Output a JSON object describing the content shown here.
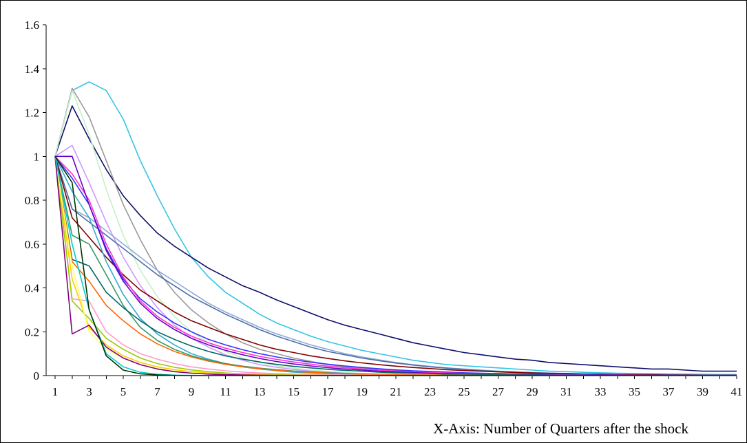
{
  "chart_data": {
    "type": "line",
    "title": "",
    "xlabel": "X-Axis: Number of Quarters after the shock",
    "ylabel": "",
    "xlim": [
      1,
      41
    ],
    "ylim": [
      0,
      1.6
    ],
    "x_tick_labels": [
      "1",
      "3",
      "5",
      "7",
      "9",
      "11",
      "13",
      "15",
      "17",
      "19",
      "21",
      "23",
      "25",
      "27",
      "29",
      "31",
      "33",
      "35",
      "37",
      "39",
      "41"
    ],
    "y_tick_labels": [
      "0",
      "0.2",
      "0.4",
      "0.6",
      "0.8",
      "1",
      "1.2",
      "1.4",
      "1.6"
    ],
    "y_tick_values": [
      0,
      0.2,
      0.4,
      0.6,
      0.8,
      1.0,
      1.2,
      1.4,
      1.6
    ],
    "grid": false,
    "legend": "none",
    "series": [
      {
        "color": "#33c4e6",
        "values": [
          1.0,
          1.3,
          1.34,
          1.3,
          1.17,
          0.98,
          0.82,
          0.67,
          0.54,
          0.45,
          0.38,
          0.33,
          0.28,
          0.24,
          0.21,
          0.18,
          0.155,
          0.135,
          0.115,
          0.1,
          0.085,
          0.07,
          0.06,
          0.05,
          0.045,
          0.04,
          0.035,
          0.03,
          0.025,
          0.02,
          0.018,
          0.015,
          0.013,
          0.011,
          0.01,
          0.009,
          0.008,
          0.007,
          0.006,
          0.005,
          0.005
        ]
      },
      {
        "color": "#0d0d6b",
        "values": [
          1.0,
          1.23,
          1.08,
          0.94,
          0.82,
          0.73,
          0.65,
          0.59,
          0.54,
          0.49,
          0.45,
          0.41,
          0.38,
          0.345,
          0.315,
          0.285,
          0.255,
          0.23,
          0.21,
          0.19,
          0.17,
          0.15,
          0.135,
          0.12,
          0.105,
          0.095,
          0.085,
          0.075,
          0.07,
          0.06,
          0.055,
          0.05,
          0.045,
          0.04,
          0.035,
          0.03,
          0.03,
          0.025,
          0.02,
          0.02,
          0.02
        ]
      },
      {
        "color": "#999999",
        "values": [
          1.0,
          1.31,
          1.18,
          0.98,
          0.78,
          0.62,
          0.48,
          0.38,
          0.3,
          0.24,
          0.19,
          0.15,
          0.12,
          0.1,
          0.08,
          0.065,
          0.05,
          0.04,
          0.035,
          0.03,
          0.025,
          0.02,
          0.018,
          0.015,
          0.012,
          0.01,
          0.01,
          0.008,
          0.007,
          0.006,
          0.005,
          0.005,
          0.004,
          0.004,
          0.003,
          0.003,
          0.003,
          0.002,
          0.002,
          0.002,
          0.002
        ]
      },
      {
        "color": "#c4f0c4",
        "values": [
          1.0,
          1.3,
          1.1,
          0.85,
          0.64,
          0.48,
          0.36,
          0.27,
          0.2,
          0.15,
          0.11,
          0.08,
          0.06,
          0.045,
          0.034,
          0.025,
          0.019,
          0.014,
          0.01,
          0.008,
          0.006,
          0.004,
          0.003,
          0.003,
          0.002,
          0.002,
          0.001,
          0.001,
          0.001,
          0.001,
          0.001,
          0.001,
          0,
          0,
          0,
          0,
          0,
          0,
          0,
          0,
          0
        ]
      },
      {
        "color": "#cc99ff",
        "values": [
          1.0,
          1.05,
          0.88,
          0.7,
          0.54,
          0.41,
          0.31,
          0.23,
          0.17,
          0.13,
          0.095,
          0.07,
          0.05,
          0.038,
          0.028,
          0.02,
          0.015,
          0.011,
          0.008,
          0.006,
          0.004,
          0.003,
          0.002,
          0.002,
          0.001,
          0.001,
          0.001,
          0.001,
          0,
          0,
          0,
          0,
          0,
          0,
          0,
          0,
          0,
          0,
          0,
          0,
          0
        ]
      },
      {
        "color": "#8fa8d9",
        "values": [
          1.0,
          0.76,
          0.72,
          0.66,
          0.6,
          0.54,
          0.48,
          0.43,
          0.38,
          0.33,
          0.29,
          0.255,
          0.22,
          0.19,
          0.165,
          0.14,
          0.12,
          0.1,
          0.085,
          0.072,
          0.06,
          0.05,
          0.042,
          0.035,
          0.03,
          0.025,
          0.02,
          0.017,
          0.014,
          0.012,
          0.01,
          0.008,
          0.007,
          0.006,
          0.005,
          0.004,
          0.003,
          0.003,
          0.002,
          0.002,
          0.002
        ]
      },
      {
        "color": "#4a6fa5",
        "values": [
          1.0,
          0.76,
          0.7,
          0.64,
          0.58,
          0.52,
          0.46,
          0.41,
          0.36,
          0.32,
          0.28,
          0.245,
          0.21,
          0.18,
          0.155,
          0.13,
          0.11,
          0.095,
          0.08,
          0.068,
          0.057,
          0.048,
          0.04,
          0.034,
          0.028,
          0.023,
          0.019,
          0.016,
          0.013,
          0.011,
          0.009,
          0.007,
          0.006,
          0.005,
          0.004,
          0.003,
          0.003,
          0.002,
          0.002,
          0.002,
          0.001
        ]
      },
      {
        "color": "#800000",
        "values": [
          1.0,
          0.72,
          0.63,
          0.54,
          0.46,
          0.39,
          0.34,
          0.29,
          0.25,
          0.22,
          0.19,
          0.165,
          0.14,
          0.12,
          0.105,
          0.09,
          0.078,
          0.067,
          0.058,
          0.05,
          0.043,
          0.037,
          0.032,
          0.027,
          0.023,
          0.02,
          0.017,
          0.014,
          0.012,
          0.01,
          0.009,
          0.007,
          0.006,
          0.005,
          0.004,
          0.004,
          0.003,
          0.003,
          0.002,
          0.002,
          0.002
        ]
      },
      {
        "color": "#3333ff",
        "values": [
          1.0,
          0.9,
          0.78,
          0.58,
          0.44,
          0.35,
          0.29,
          0.24,
          0.2,
          0.165,
          0.14,
          0.118,
          0.1,
          0.085,
          0.072,
          0.061,
          0.052,
          0.044,
          0.037,
          0.031,
          0.026,
          0.022,
          0.019,
          0.016,
          0.013,
          0.011,
          0.009,
          0.008,
          0.007,
          0.006,
          0.005,
          0.004,
          0.003,
          0.003,
          0.002,
          0.002,
          0.002,
          0.001,
          0.001,
          0.001,
          0.001
        ]
      },
      {
        "color": "#ff33cc",
        "values": [
          1.0,
          0.92,
          0.8,
          0.6,
          0.45,
          0.34,
          0.27,
          0.22,
          0.18,
          0.15,
          0.125,
          0.105,
          0.088,
          0.074,
          0.062,
          0.052,
          0.043,
          0.036,
          0.03,
          0.025,
          0.021,
          0.017,
          0.014,
          0.012,
          0.01,
          0.008,
          0.007,
          0.006,
          0.005,
          0.004,
          0.003,
          0.003,
          0.002,
          0.002,
          0.002,
          0.001,
          0.001,
          0.001,
          0.001,
          0.001,
          0.001
        ]
      },
      {
        "color": "#6600cc",
        "values": [
          1.0,
          1.0,
          0.78,
          0.57,
          0.43,
          0.33,
          0.26,
          0.21,
          0.17,
          0.14,
          0.115,
          0.095,
          0.078,
          0.064,
          0.053,
          0.044,
          0.036,
          0.03,
          0.025,
          0.02,
          0.017,
          0.014,
          0.011,
          0.009,
          0.008,
          0.006,
          0.005,
          0.004,
          0.004,
          0.003,
          0.002,
          0.002,
          0.002,
          0.001,
          0.001,
          0.001,
          0.001,
          0.001,
          0,
          0,
          0
        ]
      },
      {
        "color": "#33aacc",
        "values": [
          1.0,
          0.84,
          0.72,
          0.52,
          0.37,
          0.26,
          0.19,
          0.14,
          0.1,
          0.075,
          0.055,
          0.04,
          0.03,
          0.022,
          0.016,
          0.012,
          0.009,
          0.007,
          0.005,
          0.004,
          0.003,
          0.002,
          0.002,
          0.001,
          0.001,
          0.001,
          0.001,
          0,
          0,
          0,
          0,
          0,
          0,
          0,
          0,
          0,
          0,
          0,
          0,
          0,
          0
        ]
      },
      {
        "color": "#339966",
        "values": [
          1.0,
          0.64,
          0.6,
          0.46,
          0.32,
          0.22,
          0.16,
          0.12,
          0.09,
          0.07,
          0.055,
          0.043,
          0.034,
          0.027,
          0.021,
          0.017,
          0.013,
          0.01,
          0.008,
          0.006,
          0.005,
          0.004,
          0.003,
          0.002,
          0.002,
          0.002,
          0.001,
          0.001,
          0.001,
          0.001,
          0,
          0,
          0,
          0,
          0,
          0,
          0,
          0,
          0,
          0,
          0
        ]
      },
      {
        "color": "#006666",
        "values": [
          1.0,
          0.53,
          0.5,
          0.38,
          0.31,
          0.25,
          0.2,
          0.165,
          0.135,
          0.11,
          0.09,
          0.075,
          0.062,
          0.051,
          0.042,
          0.035,
          0.029,
          0.024,
          0.02,
          0.016,
          0.013,
          0.011,
          0.009,
          0.007,
          0.006,
          0.005,
          0.004,
          0.003,
          0.003,
          0.002,
          0.002,
          0.002,
          0.001,
          0.001,
          0.001,
          0.001,
          0.001,
          0.001,
          0,
          0,
          0
        ]
      },
      {
        "color": "#ff6600",
        "values": [
          1.0,
          0.52,
          0.43,
          0.32,
          0.25,
          0.19,
          0.145,
          0.11,
          0.085,
          0.066,
          0.051,
          0.04,
          0.031,
          0.024,
          0.019,
          0.015,
          0.011,
          0.009,
          0.007,
          0.005,
          0.004,
          0.003,
          0.003,
          0.002,
          0.002,
          0.001,
          0.001,
          0.001,
          0.001,
          0,
          0,
          0,
          0,
          0,
          0,
          0,
          0,
          0,
          0,
          0,
          0
        ]
      },
      {
        "color": "#ff99cc",
        "values": [
          1.0,
          0.35,
          0.34,
          0.2,
          0.14,
          0.1,
          0.075,
          0.055,
          0.04,
          0.03,
          0.022,
          0.016,
          0.012,
          0.009,
          0.007,
          0.005,
          0.004,
          0.003,
          0.002,
          0.002,
          0.001,
          0.001,
          0.001,
          0,
          0,
          0,
          0,
          0,
          0,
          0,
          0,
          0,
          0,
          0,
          0,
          0,
          0,
          0,
          0,
          0,
          0
        ]
      },
      {
        "color": "#99cc00",
        "values": [
          1.0,
          0.34,
          0.26,
          0.17,
          0.12,
          0.08,
          0.055,
          0.038,
          0.026,
          0.018,
          0.012,
          0.008,
          0.006,
          0.004,
          0.003,
          0.002,
          0.001,
          0.001,
          0.001,
          0,
          0,
          0,
          0,
          0,
          0,
          0,
          0,
          0,
          0,
          0,
          0,
          0,
          0,
          0,
          0,
          0,
          0,
          0,
          0,
          0,
          0
        ]
      },
      {
        "color": "#ffcc00",
        "values": [
          1.0,
          0.44,
          0.22,
          0.14,
          0.09,
          0.06,
          0.04,
          0.027,
          0.018,
          0.012,
          0.008,
          0.005,
          0.004,
          0.002,
          0.002,
          0.001,
          0.001,
          0,
          0,
          0,
          0,
          0,
          0,
          0,
          0,
          0,
          0,
          0,
          0,
          0,
          0,
          0,
          0,
          0,
          0,
          0,
          0,
          0,
          0,
          0,
          0
        ]
      },
      {
        "color": "#ffff66",
        "values": [
          1.0,
          0.5,
          0.2,
          0.12,
          0.08,
          0.05,
          0.032,
          0.02,
          0.013,
          0.008,
          0.005,
          0.003,
          0.002,
          0.001,
          0.001,
          0,
          0,
          0,
          0,
          0,
          0,
          0,
          0,
          0,
          0,
          0,
          0,
          0,
          0,
          0,
          0,
          0,
          0,
          0,
          0,
          0,
          0,
          0,
          0,
          0,
          0
        ]
      },
      {
        "color": "#800080",
        "values": [
          1.0,
          0.19,
          0.23,
          0.13,
          0.08,
          0.05,
          0.03,
          0.018,
          0.011,
          0.007,
          0.004,
          0.003,
          0.002,
          0.001,
          0.001,
          0,
          0,
          0,
          0,
          0,
          0,
          0,
          0,
          0,
          0,
          0,
          0,
          0,
          0,
          0,
          0,
          0,
          0,
          0,
          0,
          0,
          0,
          0,
          0,
          0,
          0
        ]
      },
      {
        "color": "#00cccc",
        "values": [
          1.0,
          0.6,
          0.3,
          0.1,
          0.04,
          0.015,
          0.006,
          0.002,
          0.001,
          0,
          0,
          0,
          0,
          0,
          0,
          0,
          0,
          0,
          0,
          0,
          0,
          0,
          0,
          0,
          0,
          0,
          0,
          0,
          0,
          0,
          0,
          0,
          0,
          0,
          0,
          0,
          0,
          0,
          0,
          0,
          0
        ]
      },
      {
        "color": "#003300",
        "values": [
          1.0,
          0.88,
          0.3,
          0.09,
          0.025,
          0.008,
          0.003,
          0.001,
          0,
          0,
          0,
          0,
          0,
          0,
          0,
          0,
          0,
          0,
          0,
          0,
          0,
          0,
          0,
          0,
          0,
          0,
          0,
          0,
          0,
          0,
          0,
          0,
          0,
          0,
          0,
          0,
          0,
          0,
          0,
          0,
          0
        ]
      }
    ]
  }
}
